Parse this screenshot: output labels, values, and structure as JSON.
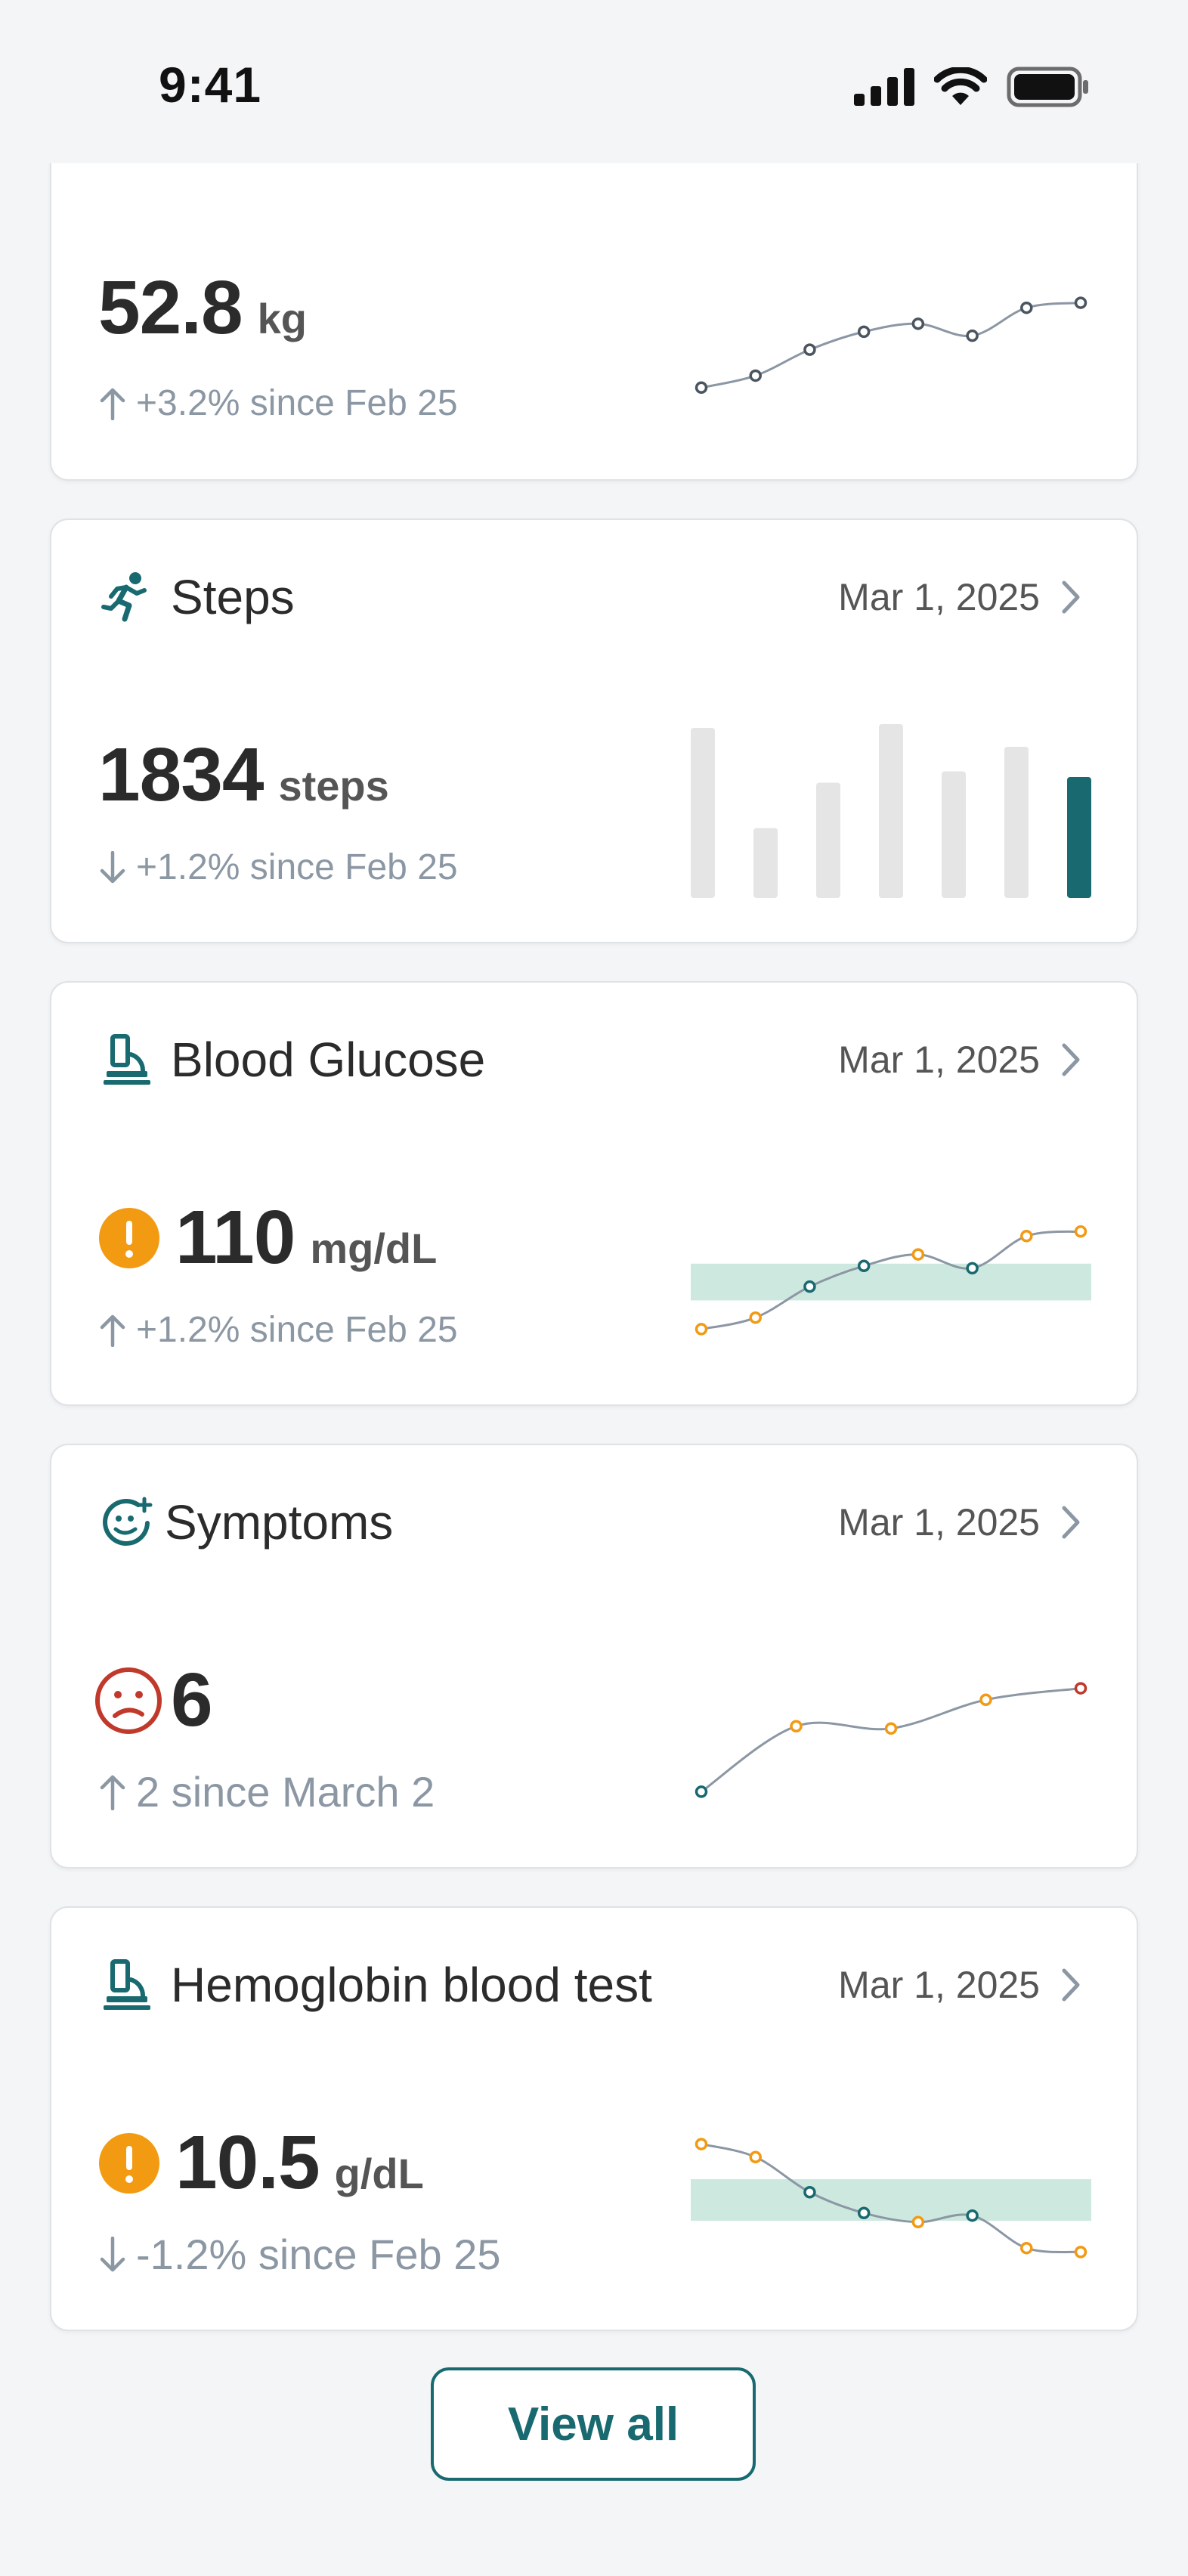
{
  "status_bar": {
    "time": "9:41"
  },
  "colors": {
    "accent": "#186a70",
    "warning": "#f29a12",
    "danger": "#c0392b",
    "range_band": "#cde9df",
    "muted_bar": "#e5e5e5"
  },
  "cards": {
    "weight": {
      "value": "52.8",
      "unit": "kg",
      "delta": "+3.2% since Feb 25",
      "delta_direction": "up",
      "chart_data": {
        "type": "line",
        "y": [
          0.1,
          0.22,
          0.48,
          0.66,
          0.74,
          0.62,
          0.9,
          0.95
        ]
      }
    },
    "steps": {
      "title": "Steps",
      "icon": "running-icon",
      "date": "Mar 1, 2025",
      "value": "1834",
      "unit": "steps",
      "delta": "+1.2% since Feb 25",
      "delta_direction": "down",
      "chart_data": {
        "type": "bar",
        "values": [
          0.9,
          0.37,
          0.61,
          0.92,
          0.67,
          0.8,
          0.64
        ],
        "highlight_index": 6
      }
    },
    "glucose": {
      "title": "Blood Glucose",
      "icon": "microscope-icon",
      "date": "Mar 1, 2025",
      "value": "110",
      "unit": "mg/dL",
      "delta": "+1.2% since Feb 25",
      "delta_direction": "up",
      "status_icon": "warning-icon",
      "chart_data": {
        "type": "line",
        "y": [
          0.05,
          0.15,
          0.42,
          0.6,
          0.7,
          0.58,
          0.86,
          0.9
        ],
        "point_status": [
          "out",
          "out",
          "in",
          "in",
          "out",
          "in",
          "out",
          "out"
        ],
        "range": [
          0.3,
          0.62
        ]
      }
    },
    "symptoms": {
      "title": "Symptoms",
      "icon": "smiley-plus-icon",
      "date": "Mar 1, 2025",
      "value": "6",
      "delta": "2 since March 2",
      "delta_direction": "up",
      "status_icon": "sad-face-icon",
      "chart_data": {
        "type": "line",
        "y": [
          0.05,
          0.62,
          0.6,
          0.85,
          0.95
        ],
        "point_status": [
          "good",
          "mid",
          "mid",
          "mid",
          "bad"
        ]
      }
    },
    "hemoglobin": {
      "title": "Hemoglobin blood test",
      "icon": "microscope-icon",
      "date": "Mar 1, 2025",
      "value": "10.5",
      "unit": "g/dL",
      "delta": "-1.2% since Feb 25",
      "delta_direction": "down",
      "status_icon": "warning-icon",
      "chart_data": {
        "type": "line",
        "y": [
          0.95,
          0.85,
          0.58,
          0.42,
          0.35,
          0.4,
          0.15,
          0.12
        ],
        "point_status": [
          "out",
          "out",
          "in",
          "in",
          "out",
          "in",
          "out",
          "out"
        ],
        "range": [
          0.36,
          0.68
        ]
      }
    }
  },
  "view_all_label": "View all"
}
